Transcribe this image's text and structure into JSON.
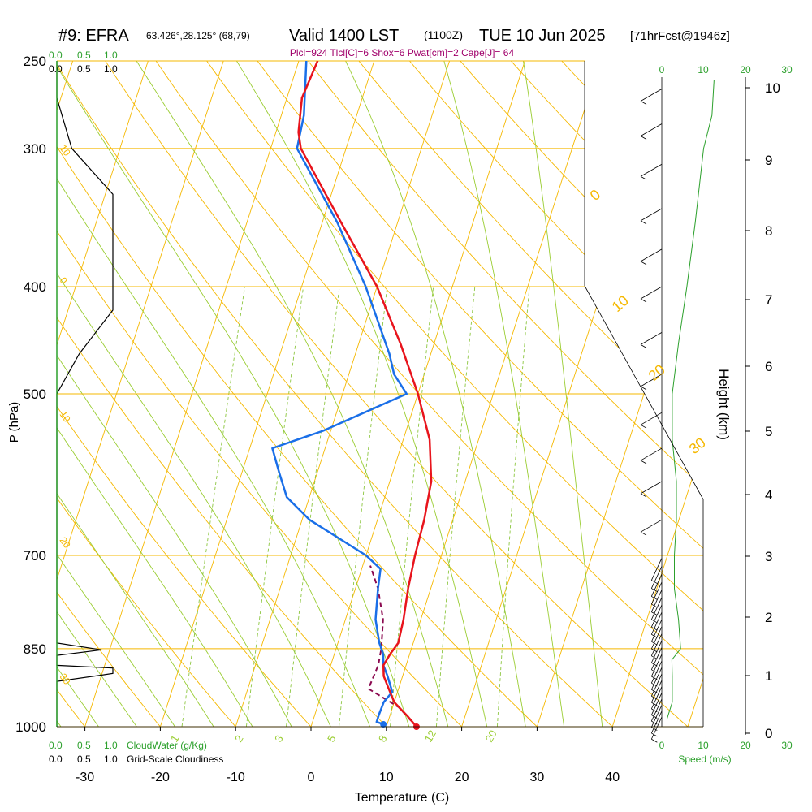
{
  "header": {
    "title_main": "#9: EFRA",
    "title_coords": "63.426°,28.125° (68,79)",
    "valid_main": "Valid 1400 LST",
    "valid_utc": "(1100Z)",
    "valid_date": "TUE 10 Jun 2025",
    "forecast_info": "[71hrFcst@1946z]",
    "indices": "Plcl=924 Tlcl[C]=6 Shox=6 Pwat[cm]=2 Cape[J]= 64"
  },
  "colors": {
    "temperature": "#e8141c",
    "dewpoint": "#1a6fe8",
    "parcel": "#8b0a50",
    "isotherm_isobar": "#f5b800",
    "moist_adiabat": "#9acd32",
    "mixing_ratio": "#8cc63f",
    "cloud_text": "#2ca02c",
    "index_text": "#a0006b",
    "wind_speed": "#2ca02c"
  },
  "chart_data": {
    "type": "skew-t",
    "xlabel": "Temperature (C)",
    "ylabel": "P (hPa)",
    "y2label": "Height (km)",
    "x_ticks": [
      -30,
      -20,
      -10,
      0,
      10,
      20,
      30,
      40
    ],
    "x_range": [
      -34,
      46
    ],
    "p_ticks": [
      250,
      300,
      400,
      500,
      700,
      850,
      1000
    ],
    "p_range": [
      250,
      1000
    ],
    "height_ticks": [
      0,
      1,
      2,
      3,
      4,
      5,
      6,
      7,
      8,
      9,
      10
    ],
    "temperature": {
      "name": "Temperature",
      "points": [
        [
          1000,
          14.0
        ],
        [
          980,
          12.5
        ],
        [
          950,
          10.0
        ],
        [
          920,
          8.5
        ],
        [
          900,
          7.5
        ],
        [
          880,
          7.0
        ],
        [
          860,
          7.4
        ],
        [
          840,
          8.0
        ],
        [
          800,
          7.7
        ],
        [
          750,
          7.0
        ],
        [
          700,
          6.5
        ],
        [
          650,
          6.2
        ],
        [
          600,
          5.5
        ],
        [
          550,
          3.5
        ],
        [
          500,
          0.0
        ],
        [
          450,
          -4.5
        ],
        [
          400,
          -10.0
        ],
        [
          350,
          -17.5
        ],
        [
          300,
          -26.0
        ],
        [
          290,
          -27.0
        ],
        [
          270,
          -28.0
        ],
        [
          250,
          -27.5
        ]
      ]
    },
    "dewpoint": {
      "name": "Dewpoint",
      "points": [
        [
          995,
          9.5
        ],
        [
          990,
          8.5
        ],
        [
          975,
          8.5
        ],
        [
          950,
          8.6
        ],
        [
          930,
          9.3
        ],
        [
          900,
          8.0
        ],
        [
          880,
          7.0
        ],
        [
          860,
          6.5
        ],
        [
          840,
          5.5
        ],
        [
          800,
          4.0
        ],
        [
          750,
          3.0
        ],
        [
          720,
          2.5
        ],
        [
          700,
          0.0
        ],
        [
          650,
          -9.0
        ],
        [
          620,
          -13.0
        ],
        [
          590,
          -15.0
        ],
        [
          560,
          -17.0
        ],
        [
          540,
          -11.0
        ],
        [
          500,
          -1.5
        ],
        [
          480,
          -4.0
        ],
        [
          460,
          -5.5
        ],
        [
          400,
          -11.5
        ],
        [
          350,
          -18.0
        ],
        [
          300,
          -26.5
        ],
        [
          280,
          -27.0
        ],
        [
          250,
          -29.0
        ]
      ]
    },
    "parcel": {
      "name": "Parcel",
      "points": [
        [
          1000,
          14.0
        ],
        [
          960,
          10.8
        ],
        [
          924,
          6.0
        ],
        [
          880,
          6.3
        ],
        [
          850,
          6.0
        ],
        [
          800,
          5.0
        ],
        [
          750,
          3.0
        ],
        [
          715,
          1.0
        ]
      ]
    },
    "moist_adiabat_labels": [
      "0",
      "10",
      "20",
      "30"
    ],
    "dry_adiabat_labels": [
      "10",
      "0",
      "10",
      "20",
      "30"
    ],
    "mixing_ratio_labels": [
      "1",
      "2",
      "3",
      "5",
      "8",
      "12",
      "20"
    ],
    "cloudiness_axis": {
      "ticks": [
        "0.0",
        "0.5",
        "1.0"
      ],
      "cloudwater_label": "CloudWater (g/Kg)",
      "cloudiness_label": "Grid-Scale Cloudiness"
    },
    "cloudiness_profile": [
      [
        250,
        0.0
      ],
      [
        270,
        0.0
      ],
      [
        300,
        0.2
      ],
      [
        330,
        0.75
      ],
      [
        420,
        0.75
      ],
      [
        460,
        0.3
      ],
      [
        500,
        0.0
      ],
      [
        600,
        0.0
      ],
      [
        840,
        0.0
      ],
      [
        852,
        0.6
      ],
      [
        862,
        0.0
      ],
      [
        880,
        0.0
      ],
      [
        885,
        0.75
      ],
      [
        895,
        0.75
      ],
      [
        910,
        0.0
      ],
      [
        1000,
        0.0
      ]
    ],
    "wind_speed_axis": {
      "ticks": [
        "0",
        "10",
        "20",
        "30"
      ],
      "label": "Speed (m/s)"
    },
    "wind_speed_profile": [
      [
        985,
        1.2
      ],
      [
        950,
        2.5
      ],
      [
        900,
        2.5
      ],
      [
        870,
        2.4
      ],
      [
        850,
        4.5
      ],
      [
        800,
        4.0
      ],
      [
        750,
        3.0
      ],
      [
        700,
        3.0
      ],
      [
        650,
        3.5
      ],
      [
        600,
        3.5
      ],
      [
        550,
        2.5
      ],
      [
        500,
        2.5
      ],
      [
        450,
        4.0
      ],
      [
        400,
        6.0
      ],
      [
        350,
        8.0
      ],
      [
        300,
        10.0
      ],
      [
        280,
        12.0
      ],
      [
        260,
        12.5
      ]
    ]
  }
}
